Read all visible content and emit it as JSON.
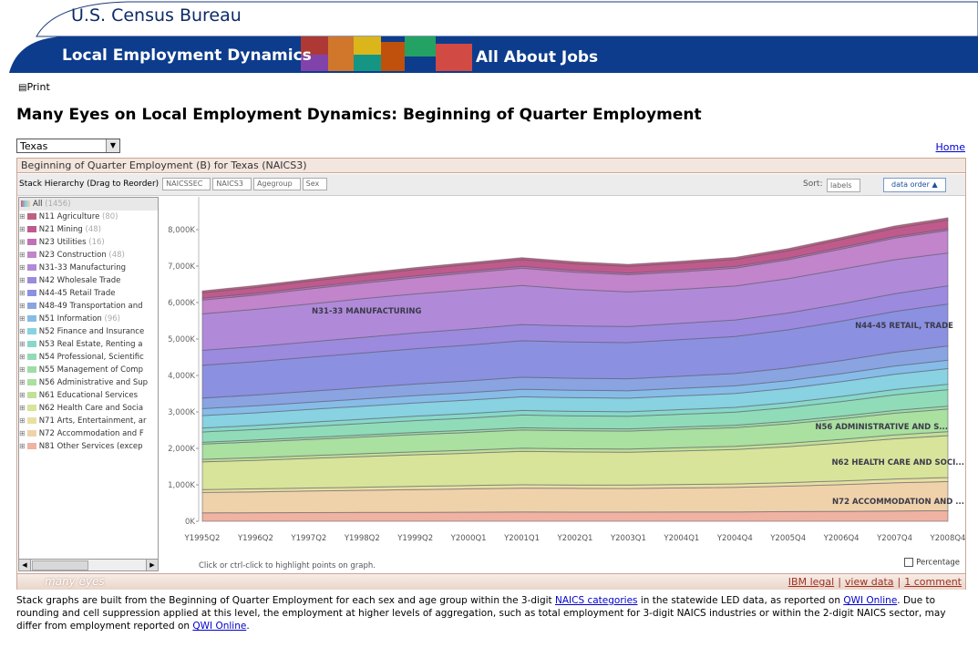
{
  "header": {
    "agency": "U.S. Census Bureau",
    "program": "Local Employment Dynamics",
    "tagline": "All About Jobs"
  },
  "print": "Print",
  "title": "Many Eyes on Local Employment Dynamics: Beginning of Quarter Employment",
  "state_select": "Texas",
  "home_link": "Home",
  "panel": {
    "title": "Beginning of Quarter Employment (B) for Texas (NAICS3)",
    "stack_label": "Stack Hierarchy (Drag to Reorder)",
    "hierarchy": [
      "NAICSSEC",
      "NAICS3",
      "Agegroup",
      "Sex"
    ],
    "sort_label": "Sort:",
    "sort_options": [
      "labels",
      "data order ▲"
    ],
    "tree_root": "All",
    "tree_root_count": "(1456)",
    "hint": "Click or ctrl-click to highlight points on graph.",
    "percentage": "Percentage",
    "brand": "many eyes",
    "footer_links": [
      "IBM legal",
      "view data",
      "1 comment"
    ],
    "separator": "|"
  },
  "chart_data": {
    "type": "stacked_area",
    "categories": [
      "Y1995Q2",
      "Y1996Q2",
      "Y1997Q2",
      "Y1998Q2",
      "Y1999Q2",
      "Y2000Q1",
      "Y2001Q1",
      "Y2002Q1",
      "Y2003Q1",
      "Y2004Q1",
      "Y2004Q4",
      "Y2005Q4",
      "Y2006Q4",
      "Y2007Q4",
      "Y2008Q4"
    ],
    "ylim": [
      0,
      8900
    ],
    "yticks": [
      {
        "value": 0,
        "label": "0K"
      },
      {
        "value": 1000,
        "label": "1,000K"
      },
      {
        "value": 2000,
        "label": "2,000K"
      },
      {
        "value": 3000,
        "label": "3,000K"
      },
      {
        "value": 4000,
        "label": "4,000K"
      },
      {
        "value": 5000,
        "label": "5,000K"
      },
      {
        "value": 6000,
        "label": "6,000K"
      },
      {
        "value": 7000,
        "label": "7,000K"
      },
      {
        "value": 8000,
        "label": "8,000K"
      }
    ],
    "annotations": [
      "N31-33 MANUFACTURING",
      "N44-45 RETAIL, TRADE",
      "N56 ADMINISTRATIVE AND S...",
      "N62 HEALTH CARE AND SOCI...",
      "N72 ACCOMMODATION AND ..."
    ],
    "series": [
      {
        "name": "N11 Agriculture",
        "count": "(80)",
        "color": "#c0607e",
        "values": [
          50,
          51,
          52,
          53,
          53,
          54,
          54,
          54,
          54,
          55,
          55,
          56,
          57,
          59,
          60
        ]
      },
      {
        "name": "N21 Mining",
        "count": "(48)",
        "color": "#c05a8c",
        "values": [
          150,
          155,
          162,
          168,
          174,
          180,
          186,
          184,
          183,
          188,
          192,
          202,
          215,
          229,
          240
        ]
      },
      {
        "name": "N23 Utilities",
        "count": "(16)",
        "color": "#c070b4",
        "values": [
          50,
          50,
          50,
          49,
          49,
          48,
          48,
          47,
          46,
          46,
          45,
          45,
          45,
          45,
          45
        ]
      },
      {
        "name": "N23 Construction",
        "count": "(48)",
        "color": "#c284ca",
        "values": [
          380,
          394,
          411,
          428,
          445,
          459,
          476,
          471,
          469,
          481,
          493,
          519,
          553,
          591,
          620
        ]
      },
      {
        "name": "N31-33 Manufacturing",
        "color": "#b08ad8",
        "values": [
          1000,
          1020,
          1040,
          1060,
          1070,
          1080,
          1070,
          1000,
          950,
          930,
          930,
          940,
          950,
          930,
          900
        ]
      },
      {
        "name": "N42 Wholesale Trade",
        "color": "#9c8ade",
        "values": [
          410,
          415,
          422,
          428,
          434,
          440,
          446,
          444,
          443,
          448,
          452,
          462,
          475,
          489,
          500
        ]
      },
      {
        "name": "N44-45 Retail Trade",
        "color": "#8c90e0",
        "values": [
          900,
          915,
          933,
          950,
          968,
          983,
          1000,
          995,
          993,
          1005,
          1018,
          1045,
          1080,
          1120,
          1150
        ]
      },
      {
        "name": "N48-49 Transportation and",
        "color": "#8aa4e2",
        "values": [
          290,
          296,
          303,
          310,
          317,
          323,
          330,
          328,
          327,
          332,
          337,
          348,
          362,
          378,
          390
        ]
      },
      {
        "name": "N51 Information",
        "count": "(96)",
        "color": "#88bce8",
        "values": [
          190,
          192,
          195,
          198,
          201,
          203,
          206,
          205,
          205,
          207,
          209,
          213,
          219,
          225,
          230
        ]
      },
      {
        "name": "N52 Finance and Insurance",
        "color": "#88d2e2",
        "values": [
          340,
          345,
          352,
          358,
          364,
          370,
          376,
          374,
          373,
          378,
          382,
          392,
          405,
          419,
          430
        ]
      },
      {
        "name": "N53 Real Estate, Renting a",
        "color": "#88d8c8",
        "values": [
          110,
          112,
          115,
          118,
          121,
          123,
          126,
          125,
          125,
          127,
          129,
          133,
          139,
          145,
          150
        ]
      },
      {
        "name": "N54 Professional, Scientific",
        "color": "#90dcb8",
        "values": [
          280,
          290,
          302,
          314,
          326,
          336,
          348,
          345,
          343,
          351,
          360,
          379,
          402,
          430,
          450
        ]
      },
      {
        "name": "N55 Management of Comp",
        "color": "#a0dca8",
        "values": [
          50,
          52,
          54,
          56,
          58,
          60,
          62,
          61,
          61,
          63,
          64,
          67,
          72,
          76,
          80
        ]
      },
      {
        "name": "N56 Administrative and Sup",
        "color": "#aae0a0",
        "values": [
          420,
          432,
          446,
          460,
          474,
          486,
          500,
          496,
          494,
          504,
          514,
          536,
          564,
          596,
          620
        ]
      },
      {
        "name": "N61 Educational Services",
        "color": "#c2e098",
        "values": [
          70,
          72,
          75,
          78,
          81,
          83,
          86,
          85,
          85,
          87,
          89,
          93,
          99,
          105,
          110
        ]
      },
      {
        "name": "N62 Health Care and Socia",
        "color": "#d8e49a",
        "values": [
          760,
          783,
          811,
          838,
          865,
          889,
          916,
          908,
          904,
          924,
          943,
          986,
          1041,
          1103,
          1150
        ]
      },
      {
        "name": "N71 Arts, Entertainment, ar",
        "color": "#e8e0a2",
        "values": [
          80,
          82,
          84,
          86,
          88,
          90,
          92,
          91,
          91,
          93,
          94,
          97,
          102,
          106,
          110
        ]
      },
      {
        "name": "N72 Accommodation and F",
        "color": "#f0d2aa",
        "values": [
          560,
          574,
          591,
          608,
          625,
          639,
          656,
          651,
          649,
          661,
          673,
          699,
          733,
          771,
          800
        ]
      },
      {
        "name": "N81 Other Services (excep",
        "color": "#f0b2a2",
        "values": [
          230,
          234,
          238,
          242,
          246,
          250,
          254,
          253,
          252,
          255,
          258,
          265,
          273,
          283,
          290
        ]
      }
    ]
  },
  "note": [
    {
      "text": "Stack graphs are built from the Beginning of Quarter Employment for each sex and age group within the 3-digit "
    },
    {
      "text": "NAICS categories",
      "link": true
    },
    {
      "text": " in the statewide LED data, as reported on "
    },
    {
      "text": "QWI Online",
      "link": true
    },
    {
      "text": ". Due to rounding and cell suppression applied at this level, the employment at higher levels of aggregation, such as total employment for 3-digit NAICS industries or within the 2-digit NAICS sector, may differ from employment reported on "
    },
    {
      "text": "QWI Online",
      "link": true
    },
    {
      "text": "."
    }
  ]
}
